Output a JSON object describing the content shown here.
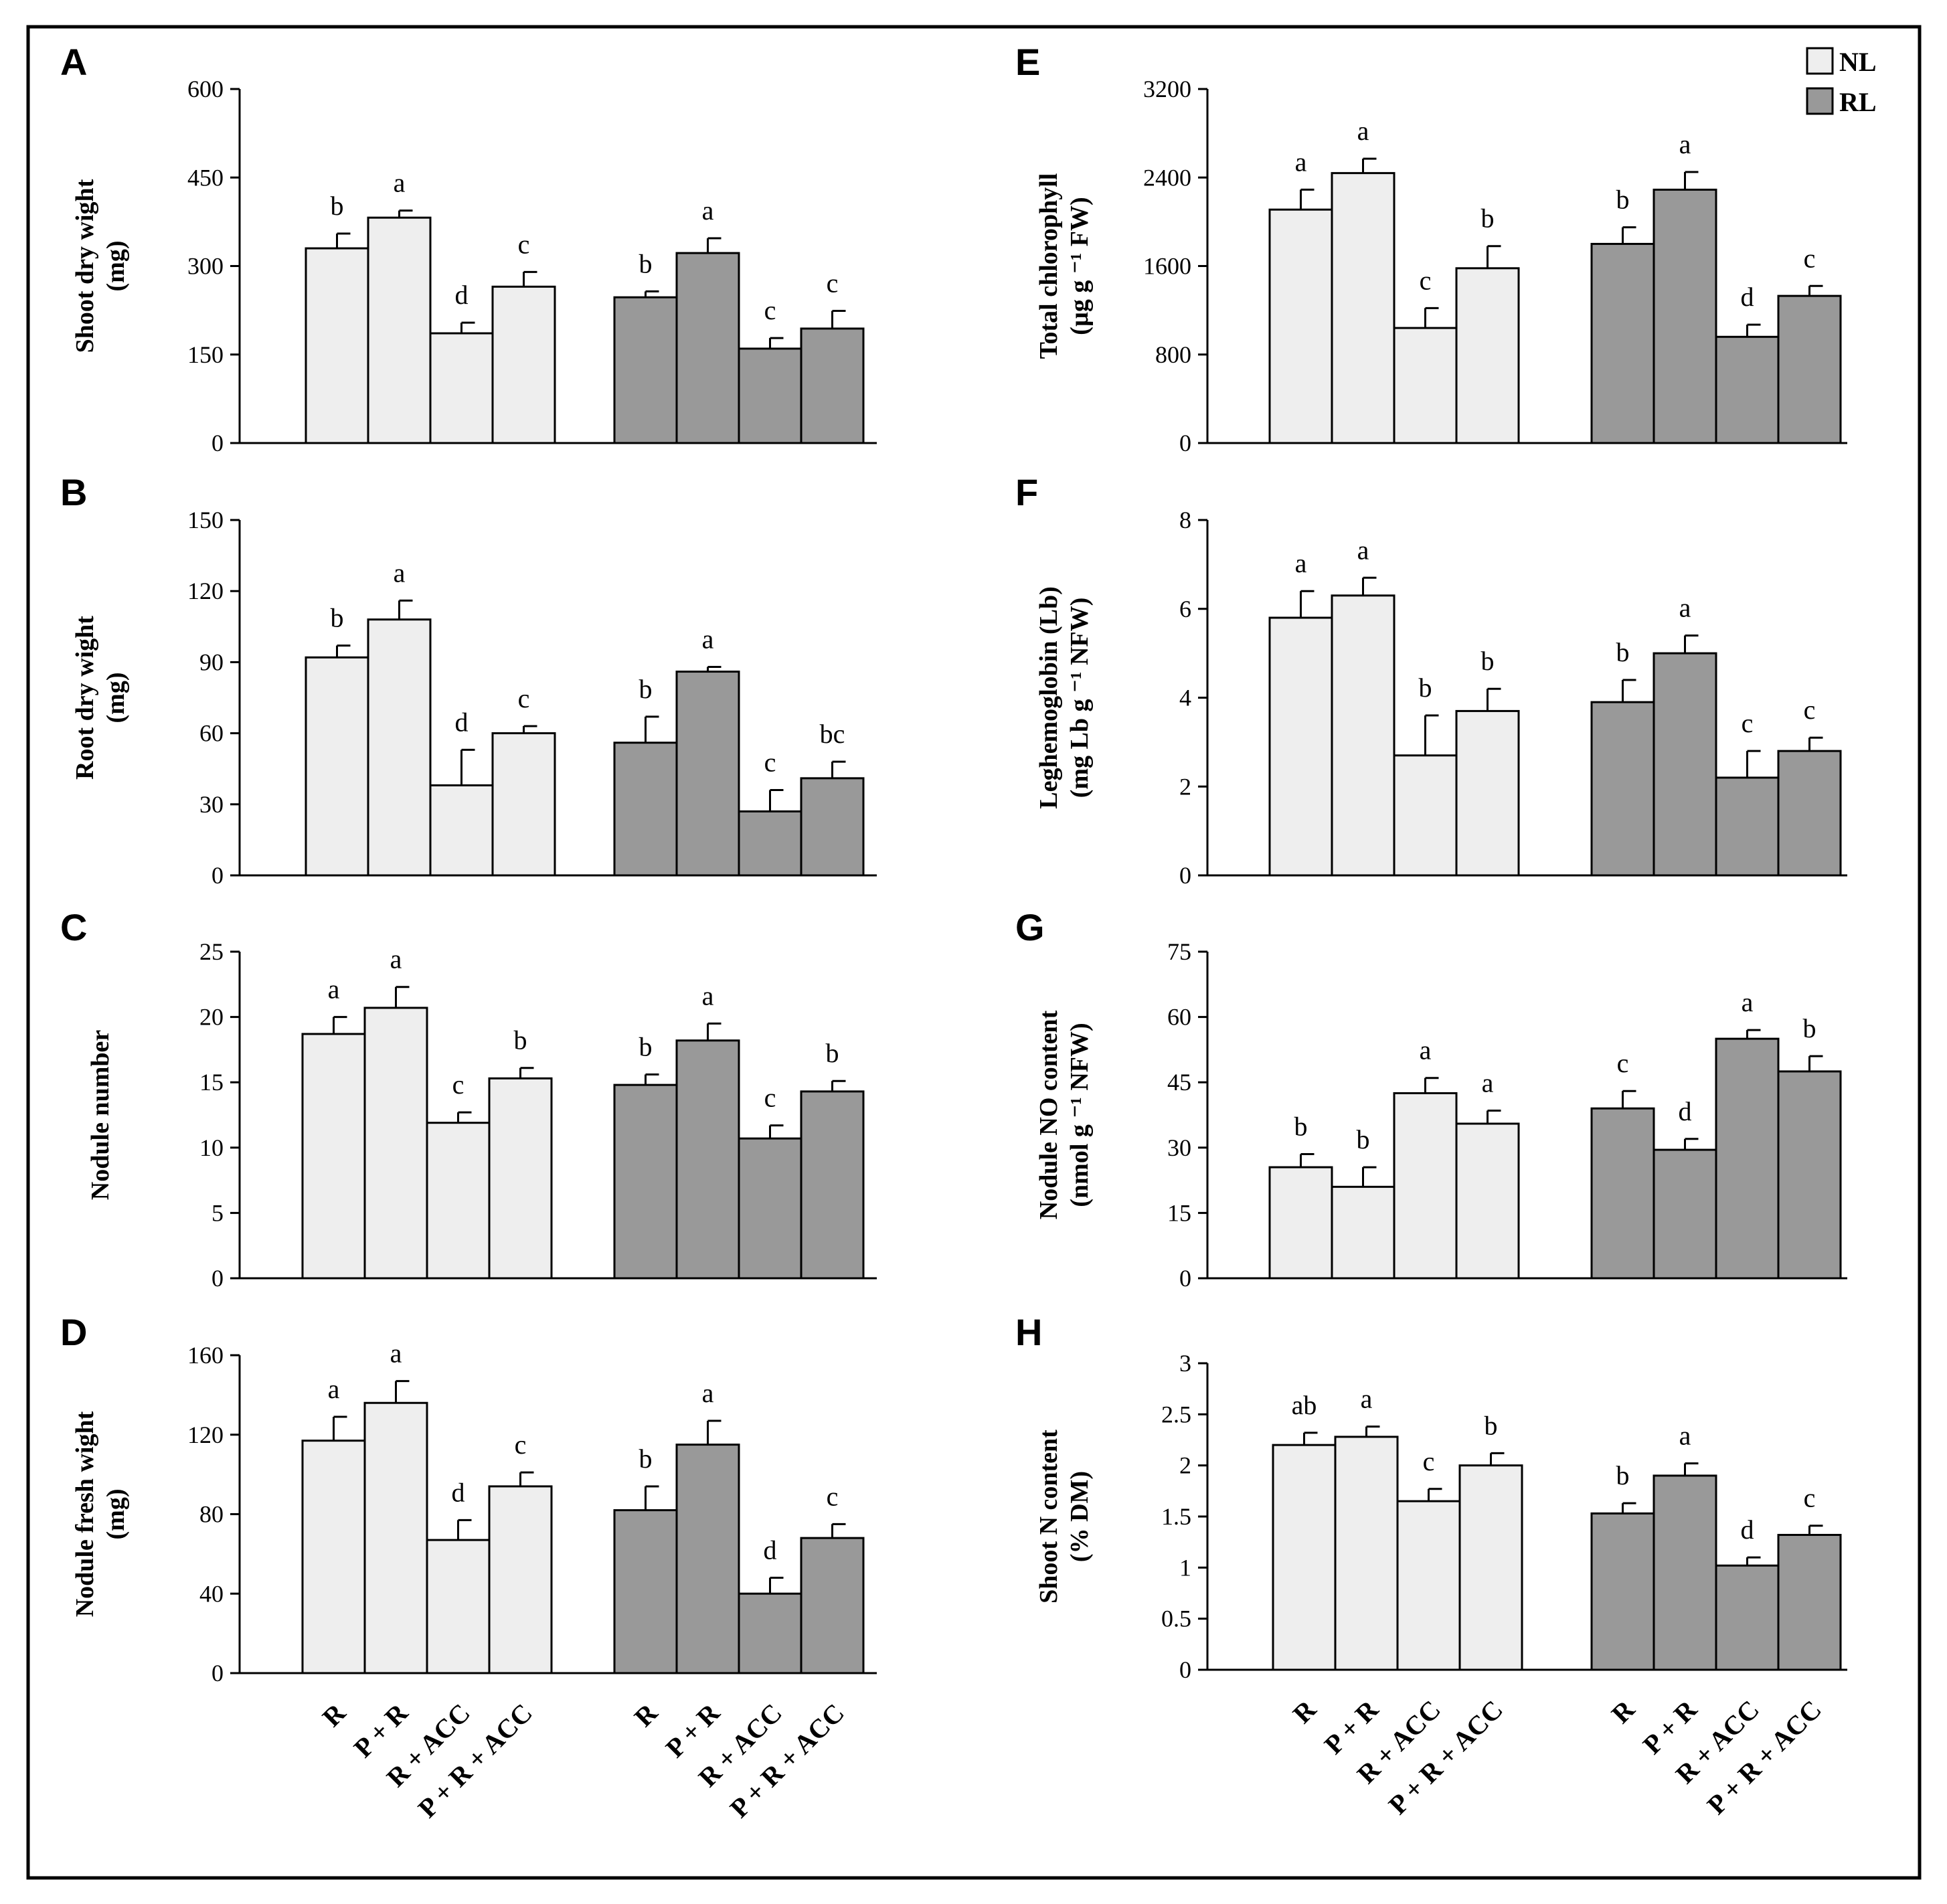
{
  "legend": [
    {
      "label": "NL",
      "color": "#eeeeee"
    },
    {
      "label": "RL",
      "color": "#999999"
    }
  ],
  "colors": {
    "NL": "#eeeeee",
    "RL": "#999999",
    "stroke": "#000000"
  },
  "chart_data": [
    {
      "type": "bar",
      "panel": "A",
      "ylabel": [
        "Shoot dry wight",
        "(mg)"
      ],
      "ylim": [
        0,
        600
      ],
      "yticks": [
        0,
        150,
        300,
        450,
        600
      ],
      "categories": [
        "R",
        "P + R",
        "R + ACC",
        "P + R + ACC"
      ],
      "series": [
        {
          "name": "NL",
          "values": [
            330,
            382,
            186,
            265
          ],
          "errors": [
            25,
            12,
            18,
            25
          ],
          "letters": [
            "b",
            "a",
            "d",
            "c"
          ]
        },
        {
          "name": "RL",
          "values": [
            247,
            322,
            160,
            194
          ],
          "errors": [
            10,
            25,
            18,
            30
          ],
          "letters": [
            "b",
            "a",
            "c",
            "c"
          ]
        }
      ]
    },
    {
      "type": "bar",
      "panel": "B",
      "ylabel": [
        "Root dry wight",
        "(mg)"
      ],
      "ylim": [
        0,
        150
      ],
      "yticks": [
        0,
        30,
        60,
        90,
        120,
        150
      ],
      "categories": [
        "R",
        "P + R",
        "R + ACC",
        "P + R + ACC"
      ],
      "series": [
        {
          "name": "NL",
          "values": [
            92,
            108,
            38,
            60
          ],
          "errors": [
            5,
            8,
            15,
            3
          ],
          "letters": [
            "b",
            "a",
            "d",
            "c"
          ]
        },
        {
          "name": "RL",
          "values": [
            56,
            86,
            27,
            41
          ],
          "errors": [
            11,
            2,
            9,
            7
          ],
          "letters": [
            "b",
            "a",
            "c",
            "bc"
          ]
        }
      ]
    },
    {
      "type": "bar",
      "panel": "C",
      "ylabel": [
        "Nodule number"
      ],
      "ylim": [
        0,
        25
      ],
      "yticks": [
        0,
        5,
        10,
        15,
        20,
        25
      ],
      "categories": [
        "R",
        "P + R",
        "R + ACC",
        "P + R + ACC"
      ],
      "series": [
        {
          "name": "NL",
          "values": [
            18.7,
            20.7,
            11.9,
            15.3
          ],
          "errors": [
            1.3,
            1.6,
            0.8,
            0.8
          ],
          "letters": [
            "a",
            "a",
            "c",
            "b"
          ]
        },
        {
          "name": "RL",
          "values": [
            14.8,
            18.2,
            10.7,
            14.3
          ],
          "errors": [
            0.8,
            1.3,
            1.0,
            0.8
          ],
          "letters": [
            "b",
            "a",
            "c",
            "b"
          ]
        }
      ]
    },
    {
      "type": "bar",
      "panel": "D",
      "ylabel": [
        "Nodule fresh wight",
        "(mg)"
      ],
      "ylim": [
        0,
        160
      ],
      "yticks": [
        0,
        40,
        80,
        120,
        160
      ],
      "categories": [
        "R",
        "P + R",
        "R + ACC",
        "P + R + ACC"
      ],
      "series": [
        {
          "name": "NL",
          "values": [
            117,
            136,
            67,
            94
          ],
          "errors": [
            12,
            11,
            10,
            7
          ],
          "letters": [
            "a",
            "a",
            "d",
            "c"
          ]
        },
        {
          "name": "RL",
          "values": [
            82,
            115,
            40,
            68
          ],
          "errors": [
            12,
            12,
            8,
            7
          ],
          "letters": [
            "b",
            "a",
            "d",
            "c"
          ]
        }
      ]
    },
    {
      "type": "bar",
      "panel": "E",
      "ylabel": [
        "Total chlorophyll",
        "(µg g ⁻¹ FW)"
      ],
      "ylim": [
        0,
        3200
      ],
      "yticks": [
        0,
        800,
        1600,
        2400,
        3200
      ],
      "categories": [
        "R",
        "P + R",
        "R + ACC",
        "P + R + ACC"
      ],
      "series": [
        {
          "name": "NL",
          "values": [
            2110,
            2440,
            1040,
            1580
          ],
          "errors": [
            180,
            130,
            180,
            200
          ],
          "letters": [
            "a",
            "a",
            "c",
            "b"
          ]
        },
        {
          "name": "RL",
          "values": [
            1800,
            2290,
            960,
            1330
          ],
          "errors": [
            150,
            160,
            110,
            90
          ],
          "letters": [
            "b",
            "a",
            "d",
            "c"
          ]
        }
      ]
    },
    {
      "type": "bar",
      "panel": "F",
      "ylabel": [
        "Leghemoglobin (Lb)",
        "(mg Lb g ⁻¹ NFW)"
      ],
      "ylim": [
        0,
        8
      ],
      "yticks": [
        0,
        2,
        4,
        6,
        8
      ],
      "categories": [
        "R",
        "P + R",
        "R + ACC",
        "P + R + ACC"
      ],
      "series": [
        {
          "name": "NL",
          "values": [
            5.8,
            6.3,
            2.7,
            3.7
          ],
          "errors": [
            0.6,
            0.4,
            0.9,
            0.5
          ],
          "letters": [
            "a",
            "a",
            "b",
            "b"
          ]
        },
        {
          "name": "RL",
          "values": [
            3.9,
            5.0,
            2.2,
            2.8
          ],
          "errors": [
            0.5,
            0.4,
            0.6,
            0.3
          ],
          "letters": [
            "b",
            "a",
            "c",
            "c"
          ]
        }
      ]
    },
    {
      "type": "bar",
      "panel": "G",
      "ylabel": [
        "Nodule NO content",
        "(nmol g ⁻¹ NFW)"
      ],
      "ylim": [
        0,
        75
      ],
      "yticks": [
        0,
        15,
        30,
        45,
        60,
        75
      ],
      "categories": [
        "R",
        "P + R",
        "R + ACC",
        "P + R + ACC"
      ],
      "series": [
        {
          "name": "NL",
          "values": [
            25.5,
            21,
            42.5,
            35.5
          ],
          "errors": [
            3,
            4.5,
            3.5,
            3
          ],
          "letters": [
            "b",
            "b",
            "a",
            "a"
          ]
        },
        {
          "name": "RL",
          "values": [
            39,
            29.5,
            55,
            47.5
          ],
          "errors": [
            4,
            2.5,
            2,
            3.5
          ],
          "letters": [
            "c",
            "d",
            "a",
            "b"
          ]
        }
      ]
    },
    {
      "type": "bar",
      "panel": "H",
      "ylabel": [
        "Shoot N content",
        "(% DM)"
      ],
      "ylim": [
        0,
        3
      ],
      "yticks": [
        "0",
        "0.5",
        "1",
        "1.5",
        "2",
        "2.5",
        "3"
      ],
      "categories": [
        "R",
        "P + R",
        "R + ACC",
        "P + R + ACC"
      ],
      "series": [
        {
          "name": "NL",
          "values": [
            2.2,
            2.28,
            1.65,
            2.0
          ],
          "errors": [
            0.12,
            0.1,
            0.12,
            0.12
          ],
          "letters": [
            "ab",
            "a",
            "c",
            "b"
          ]
        },
        {
          "name": "RL",
          "values": [
            1.53,
            1.9,
            1.02,
            1.32
          ],
          "errors": [
            0.1,
            0.12,
            0.08,
            0.09
          ],
          "letters": [
            "b",
            "a",
            "d",
            "c"
          ]
        }
      ]
    }
  ]
}
